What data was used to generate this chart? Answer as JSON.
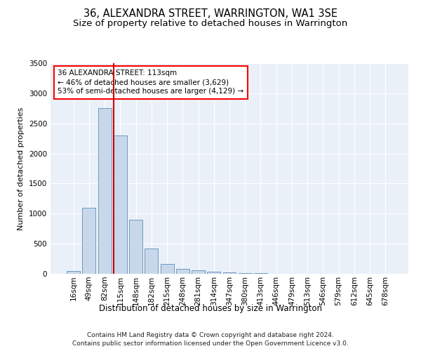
{
  "title": "36, ALEXANDRA STREET, WARRINGTON, WA1 3SE",
  "subtitle": "Size of property relative to detached houses in Warrington",
  "xlabel": "Distribution of detached houses by size in Warrington",
  "ylabel": "Number of detached properties",
  "bar_labels": [
    "16sqm",
    "49sqm",
    "82sqm",
    "115sqm",
    "148sqm",
    "182sqm",
    "215sqm",
    "248sqm",
    "281sqm",
    "314sqm",
    "347sqm",
    "380sqm",
    "413sqm",
    "446sqm",
    "479sqm",
    "513sqm",
    "546sqm",
    "579sqm",
    "612sqm",
    "645sqm",
    "678sqm"
  ],
  "bar_values": [
    50,
    1100,
    2750,
    2300,
    900,
    420,
    160,
    85,
    60,
    38,
    22,
    14,
    9,
    5,
    3,
    2,
    1,
    1,
    0,
    0,
    0
  ],
  "bar_color": "#c8d8ea",
  "bar_edge_color": "#5b8db8",
  "highlight_bar_index": 3,
  "highlight_line_color": "#cc0000",
  "ylim": [
    0,
    3500
  ],
  "yticks": [
    0,
    500,
    1000,
    1500,
    2000,
    2500,
    3000,
    3500
  ],
  "annotation_box_text": "36 ALEXANDRA STREET: 113sqm\n← 46% of detached houses are smaller (3,629)\n53% of semi-detached houses are larger (4,129) →",
  "footnote1": "Contains HM Land Registry data © Crown copyright and database right 2024.",
  "footnote2": "Contains public sector information licensed under the Open Government Licence v3.0.",
  "background_color": "#eaf0f8",
  "grid_color": "#ffffff",
  "title_fontsize": 10.5,
  "subtitle_fontsize": 9.5,
  "xlabel_fontsize": 8.5,
  "ylabel_fontsize": 8,
  "tick_fontsize": 7.5,
  "annotation_fontsize": 7.5,
  "footnote_fontsize": 6.5
}
